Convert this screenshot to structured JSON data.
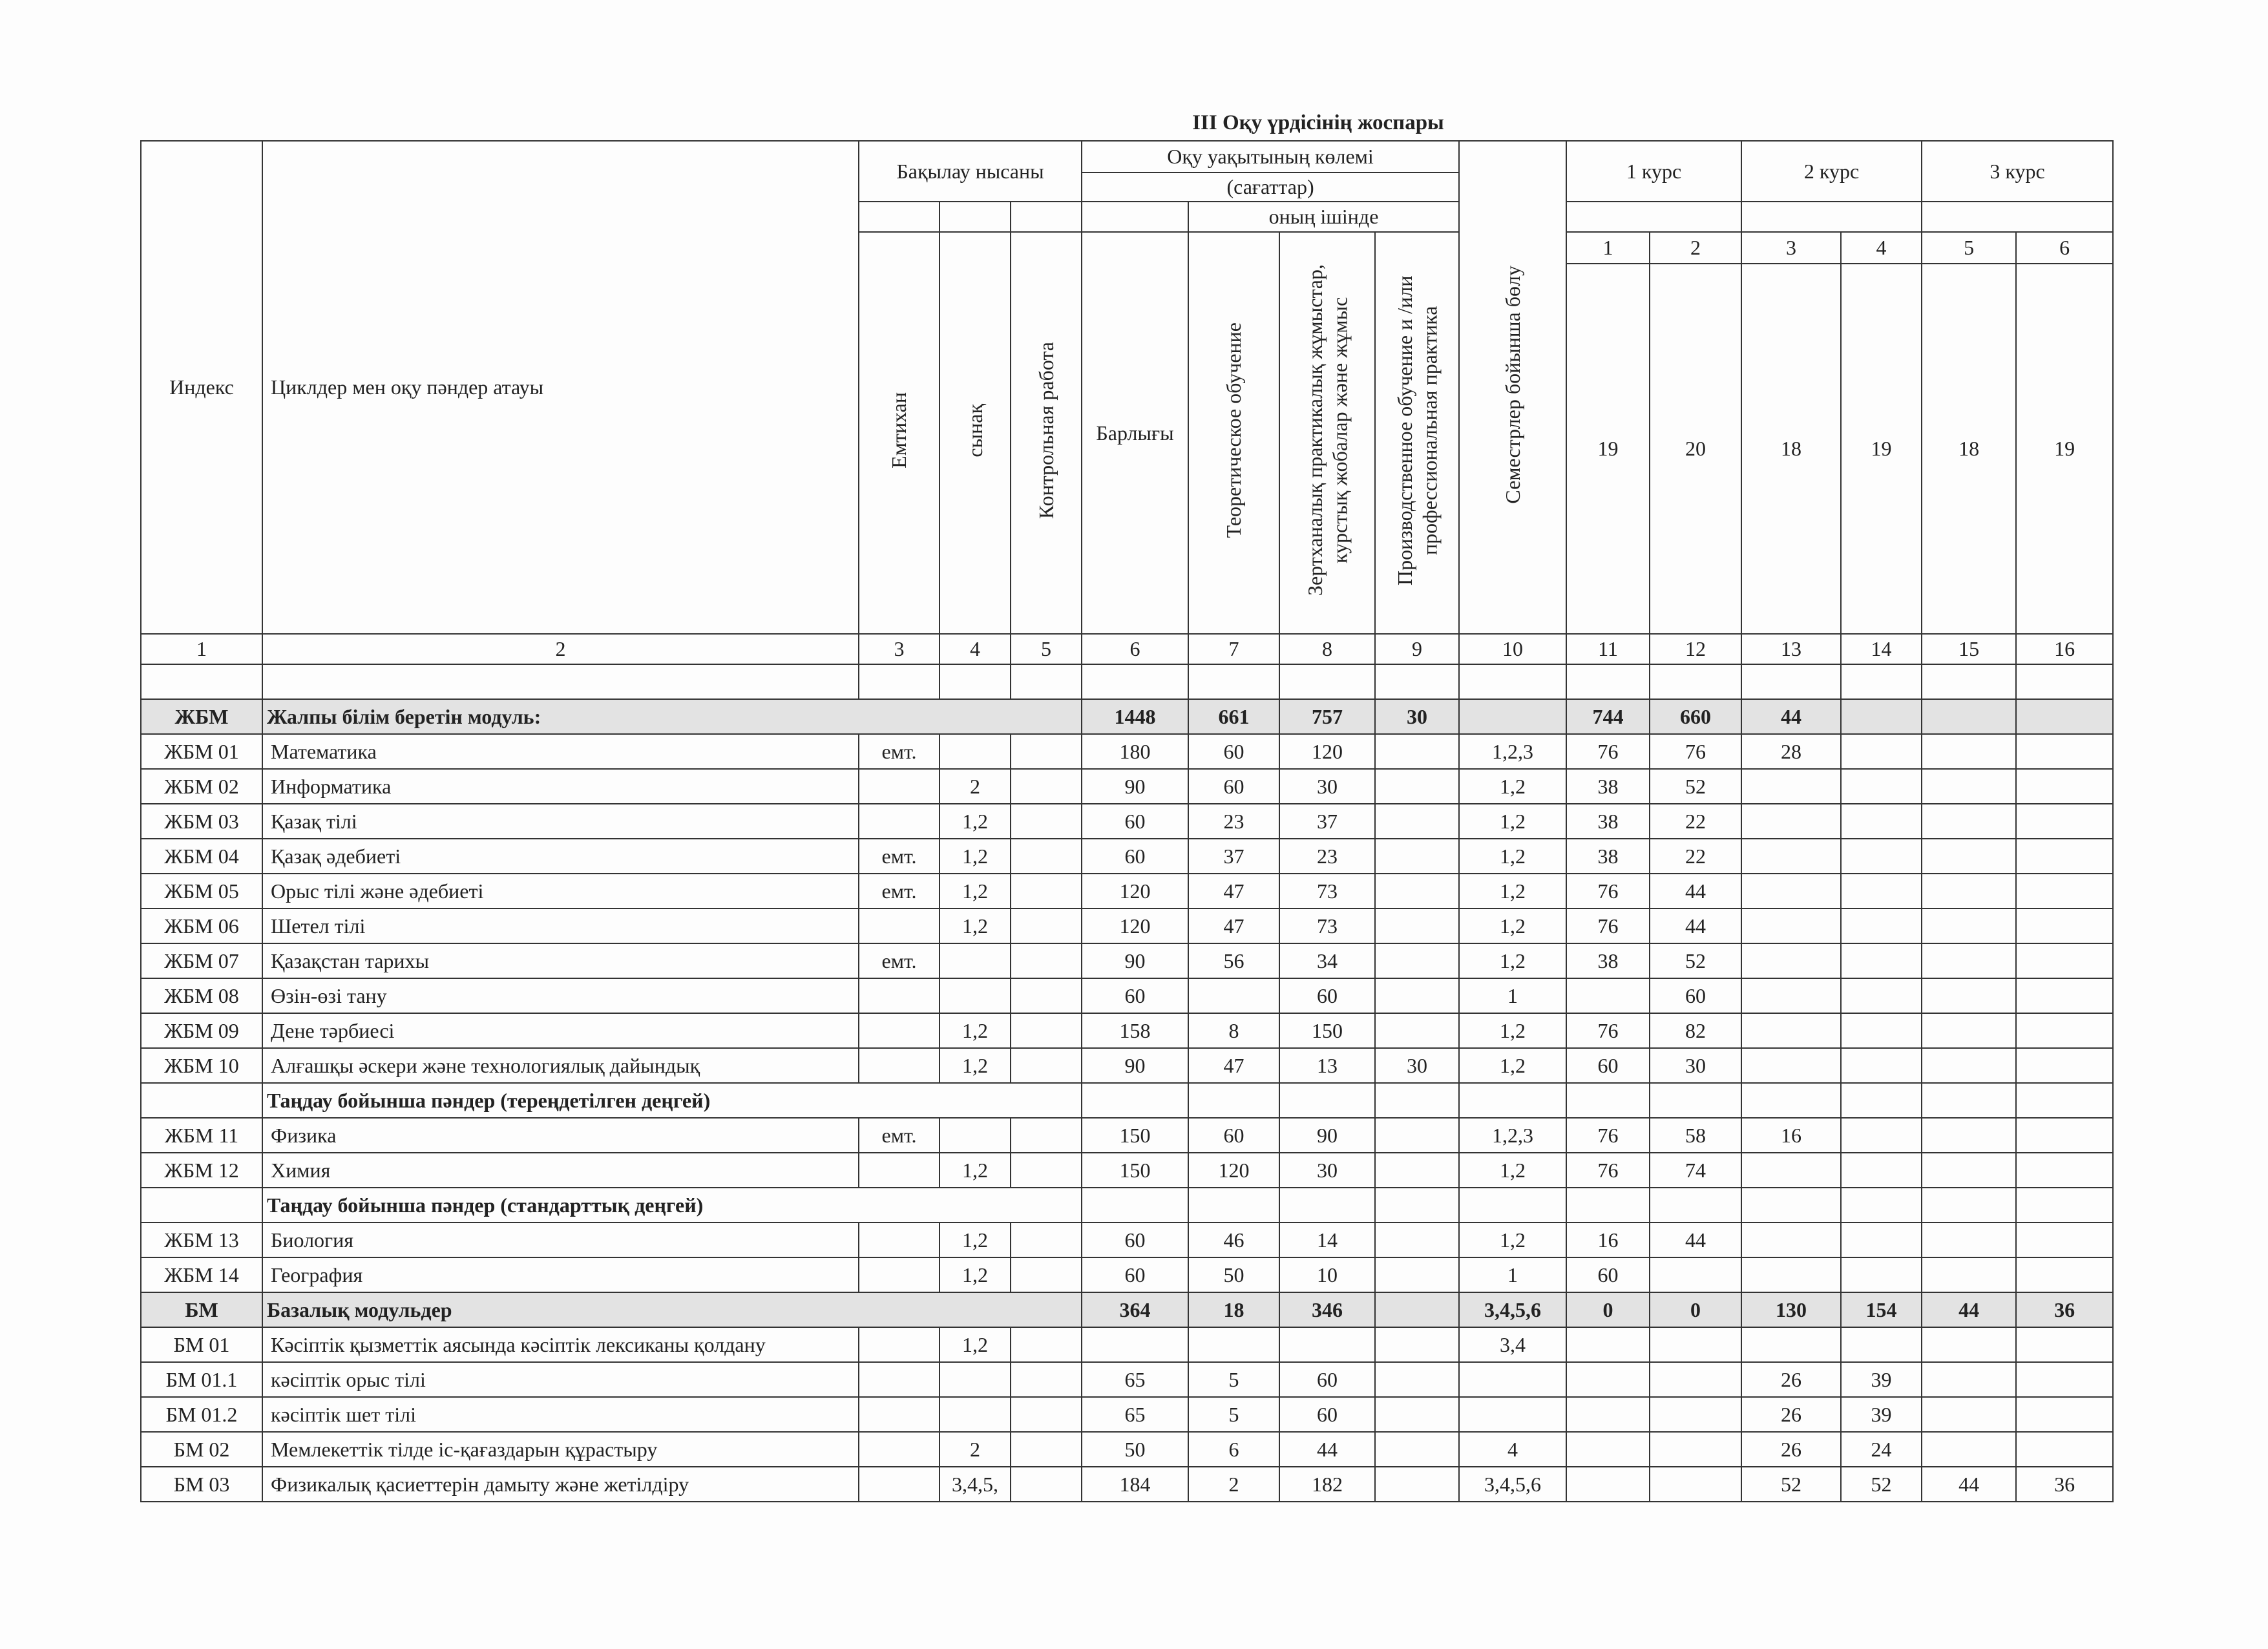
{
  "title": "III Оқу үрдісінің жоспары",
  "header": {
    "index": "Индекс",
    "name": "Циклдер мен оқу пәндер атауы",
    "control": "Бақылау нысаны",
    "volume": "Оқу уақытының көлемі",
    "hours": "(сағаттар)",
    "of_which": "оның ішінде",
    "exam": "Емтихан",
    "credit": "сынақ",
    "control_work": "Контрольная работа",
    "total": "Барлығы",
    "theory": "Теоретическое обучение",
    "practice": "Зертханалық практикалық жұмыстар, курстық жобалар және жұмыс",
    "production": "Производственное обучение и /или профессиональная практика",
    "semesters": "Семестрлер бойынша бөлу",
    "courses": [
      "1 курс",
      "2 курс",
      "3 курс"
    ],
    "semester_numbers": [
      1,
      2,
      3,
      4,
      5,
      6
    ],
    "weeks": [
      19,
      20,
      18,
      19,
      18,
      19
    ],
    "column_numbers": [
      1,
      2,
      3,
      4,
      5,
      6,
      7,
      8,
      9,
      10,
      11,
      12,
      13,
      14,
      15,
      16
    ]
  },
  "table": {
    "rows": [
      {
        "cells": [
          null,
          null,
          null,
          null,
          null,
          null,
          null,
          null,
          null,
          null,
          null,
          null,
          null,
          null,
          null,
          null
        ]
      },
      {
        "kind": "module",
        "cells": [
          "ЖБМ",
          "Жалпы білім беретін модуль:",
          null,
          null,
          null,
          1448,
          661,
          757,
          30,
          null,
          744,
          660,
          44,
          null,
          null,
          null
        ]
      },
      {
        "cells": [
          "ЖБМ 01",
          "Математика",
          "емт.",
          null,
          null,
          180,
          60,
          120,
          null,
          "1,2,3",
          76,
          76,
          28,
          null,
          null,
          null
        ]
      },
      {
        "cells": [
          "ЖБМ 02",
          "Информатика",
          null,
          2,
          null,
          90,
          60,
          30,
          null,
          "1,2",
          38,
          52,
          null,
          null,
          null,
          null
        ]
      },
      {
        "cells": [
          "ЖБМ 03",
          "Қазақ тілі",
          null,
          "1,2",
          null,
          60,
          23,
          37,
          null,
          "1,2",
          38,
          22,
          null,
          null,
          null,
          null
        ]
      },
      {
        "cells": [
          "ЖБМ 04",
          "Қазақ әдебиеті",
          "емт.",
          "1,2",
          null,
          60,
          37,
          23,
          null,
          "1,2",
          38,
          22,
          null,
          null,
          null,
          null
        ]
      },
      {
        "cells": [
          "ЖБМ 05",
          "Орыс тілі және әдебиеті",
          "емт.",
          "1,2",
          null,
          120,
          47,
          73,
          null,
          "1,2",
          76,
          44,
          null,
          null,
          null,
          null
        ]
      },
      {
        "cells": [
          "ЖБМ 06",
          "Шетел тілі",
          null,
          "1,2",
          null,
          120,
          47,
          73,
          null,
          "1,2",
          76,
          44,
          null,
          null,
          null,
          null
        ]
      },
      {
        "cells": [
          "ЖБМ 07",
          "Қазақстан тарихы",
          "емт.",
          null,
          null,
          90,
          56,
          34,
          null,
          "1,2",
          38,
          52,
          null,
          null,
          null,
          null
        ]
      },
      {
        "cells": [
          "ЖБМ 08",
          "Өзін-өзі тану",
          null,
          null,
          null,
          60,
          null,
          60,
          null,
          1,
          null,
          60,
          null,
          null,
          null,
          null
        ]
      },
      {
        "cells": [
          "ЖБМ 09",
          "Дене тәрбиесі",
          null,
          "1,2",
          null,
          158,
          8,
          150,
          null,
          "1,2",
          76,
          82,
          null,
          null,
          null,
          null
        ]
      },
      {
        "cells": [
          "ЖБМ 10",
          "Алғашқы әскери және технологиялық дайындық",
          null,
          "1,2",
          null,
          90,
          47,
          13,
          30,
          "1,2",
          60,
          30,
          null,
          null,
          null,
          null
        ]
      },
      {
        "kind": "group",
        "cells": [
          null,
          "Таңдау бойынша пәндер (тереңдетілген деңгей)",
          null,
          null,
          null,
          null,
          null,
          null,
          null,
          null,
          null,
          null,
          null,
          null,
          null,
          null
        ]
      },
      {
        "cells": [
          "ЖБМ  11",
          "Физика",
          "емт.",
          null,
          null,
          150,
          60,
          90,
          null,
          "1,2,3",
          76,
          58,
          16,
          null,
          null,
          null
        ]
      },
      {
        "cells": [
          "ЖБМ  12",
          "Химия",
          null,
          "1,2",
          null,
          150,
          120,
          30,
          null,
          "1,2",
          76,
          74,
          null,
          null,
          null,
          null
        ]
      },
      {
        "kind": "group",
        "cells": [
          null,
          "Таңдау бойынша пәндер (стандарттық деңгей)",
          null,
          null,
          null,
          null,
          null,
          null,
          null,
          null,
          null,
          null,
          null,
          null,
          null,
          null
        ]
      },
      {
        "cells": [
          "ЖБМ 13",
          "Биология",
          null,
          "1,2",
          null,
          60,
          46,
          14,
          null,
          "1,2",
          16,
          44,
          null,
          null,
          null,
          null
        ]
      },
      {
        "cells": [
          "ЖБМ 14",
          "География",
          null,
          "1,2",
          null,
          60,
          50,
          10,
          null,
          1,
          60,
          null,
          null,
          null,
          null,
          null
        ]
      },
      {
        "kind": "module",
        "cells": [
          "БМ",
          "Базалық модульдер",
          null,
          null,
          null,
          364,
          18,
          346,
          null,
          "3,4,5,6",
          0,
          0,
          130,
          154,
          44,
          36
        ]
      },
      {
        "cells": [
          "БМ 01",
          "Кәсіптік  қызметтік  аясында  кәсіптік  лексиканы қолдану",
          null,
          "1,2",
          null,
          null,
          null,
          null,
          null,
          "3,4",
          null,
          null,
          null,
          null,
          null,
          null
        ]
      },
      {
        "cells": [
          "БМ 01.1",
          "кәсіптік орыс тілі",
          null,
          null,
          null,
          65,
          5,
          60,
          null,
          null,
          null,
          null,
          26,
          39,
          null,
          null
        ]
      },
      {
        "cells": [
          "БМ 01.2",
          "кәсіптік шет тілі",
          null,
          null,
          null,
          65,
          5,
          60,
          null,
          null,
          null,
          null,
          26,
          39,
          null,
          null
        ]
      },
      {
        "cells": [
          "БМ 02",
          "Мемлекеттік тілде іс-қағаздарын құрастыру",
          null,
          2,
          null,
          50,
          6,
          44,
          null,
          4,
          null,
          null,
          26,
          24,
          null,
          null
        ]
      },
      {
        "cells": [
          "БМ 03",
          "Физикалық қасиеттерін дамыту және жетілдіру",
          null,
          "3,4,5,",
          null,
          184,
          2,
          182,
          null,
          "3,4,5,6",
          null,
          null,
          52,
          52,
          44,
          36
        ]
      }
    ]
  }
}
